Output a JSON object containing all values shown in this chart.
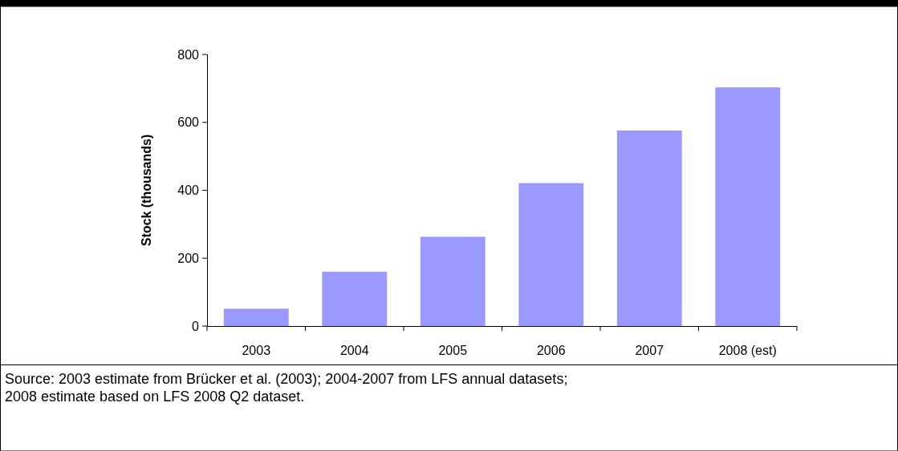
{
  "chart_data": {
    "type": "bar",
    "ylabel": "Stock (thousands)",
    "categories": [
      "2003",
      "2004",
      "2005",
      "2006",
      "2007",
      "2008 (est)"
    ],
    "values": [
      51,
      160,
      263,
      421,
      576,
      703
    ],
    "color": "#9999ff",
    "ylim": [
      0,
      800
    ],
    "yticks": [
      0,
      200,
      400,
      600,
      800
    ],
    "grid": false,
    "annotations": [
      "Source: 2003 estimate from Brücker et al. (2003); 2004-2007 from LFS annual datasets; 2008 estimate based on LFS 2008 Q2 dataset."
    ]
  }
}
